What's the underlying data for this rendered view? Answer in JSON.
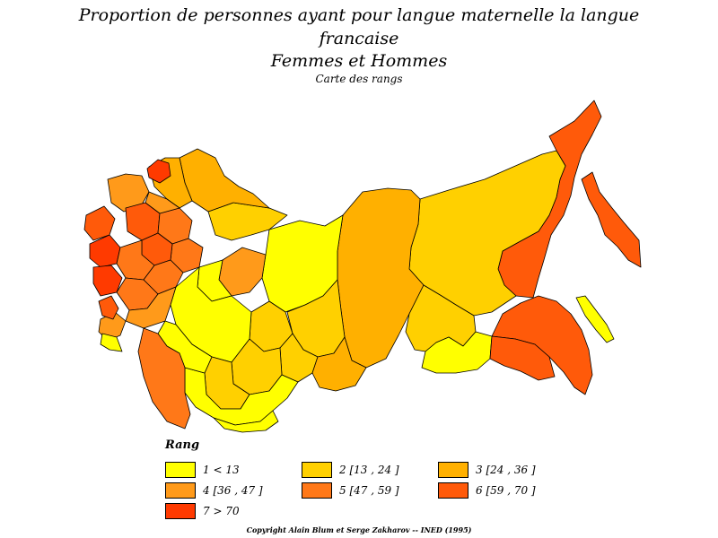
{
  "header": {
    "title_line1": "Proportion de personnes ayant pour langue maternelle la langue",
    "title_line2": "francaise",
    "subtitle": "Femmes et Hommes",
    "map_type": "Carte des rangs"
  },
  "legend": {
    "title": "Rang",
    "items": [
      {
        "label": "1  <  13",
        "color": "#ffff00"
      },
      {
        "label": "2  [13  ,  24  ]",
        "color": "#ffd000"
      },
      {
        "label": "3  [24  ,  36  ]",
        "color": "#ffb000"
      },
      {
        "label": "4  [36  ,  47  ]",
        "color": "#ff9a1a"
      },
      {
        "label": "5  [47  ,  59  ]",
        "color": "#ff7818"
      },
      {
        "label": "6  [59  ,  70  ]",
        "color": "#ff5a0a"
      },
      {
        "label": "7  >  70",
        "color": "#ff3a00"
      }
    ]
  },
  "footer": {
    "copyright": "Copyright Alain Blum et Serge Zakharov  --  INED (1995)"
  },
  "colors": {
    "outline": "#000000",
    "background": "#ffffff"
  }
}
